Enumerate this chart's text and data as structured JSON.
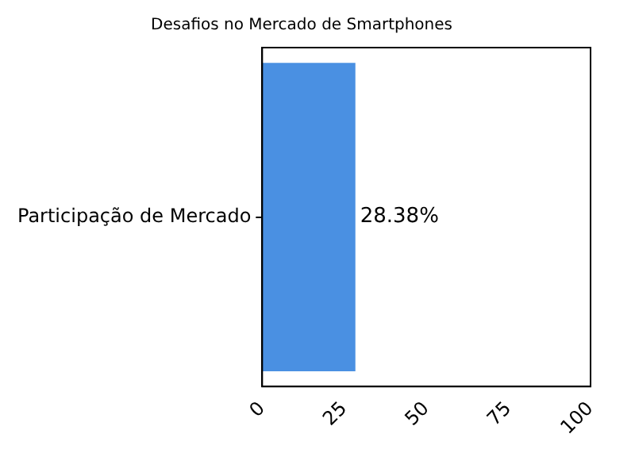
{
  "chart_data": {
    "type": "bar",
    "orientation": "horizontal",
    "title": "Desafios no Mercado de Smartphones",
    "categories": [
      "Participação de Mercado"
    ],
    "values": [
      28.38
    ],
    "color": "#4a90e2",
    "value_labels": [
      "28.38%"
    ],
    "xlim": [
      0,
      100
    ],
    "xticks": [
      0,
      25,
      50,
      75,
      100
    ],
    "grid": false,
    "legend": false
  }
}
